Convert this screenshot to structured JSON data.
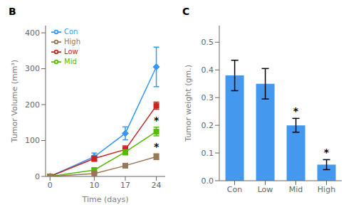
{
  "chart_data": [
    {
      "type": "line",
      "title": "B",
      "x_label": "Time (days)",
      "y_label": "Tumor Volume (mm³)",
      "x": [
        0,
        10,
        17,
        24
      ],
      "xlim": [
        -1,
        26
      ],
      "xticks": [
        0,
        10,
        17,
        24
      ],
      "ylim": [
        0,
        420
      ],
      "yticks": [
        0,
        100,
        200,
        300,
        400
      ],
      "legend": "upper left",
      "grid": false,
      "series": [
        {
          "name": "Con",
          "color": "#3399FF",
          "marker": "diamond",
          "values": [
            0,
            55,
            120,
            305
          ],
          "errors": [
            0,
            10,
            18,
            55
          ]
        },
        {
          "name": "Low",
          "color": "#CC2222",
          "marker": "square",
          "values": [
            0,
            50,
            75,
            197
          ],
          "errors": [
            0,
            8,
            10,
            10
          ]
        },
        {
          "name": "Mid",
          "color": "#55BB00",
          "marker": "square",
          "values": [
            0,
            18,
            68,
            125
          ],
          "errors": [
            0,
            4,
            8,
            12
          ]
        },
        {
          "name": "High",
          "color": "#997755",
          "marker": "square",
          "values": [
            0,
            8,
            30,
            55
          ],
          "errors": [
            0,
            2,
            5,
            8
          ]
        }
      ],
      "annotations": [
        {
          "text": "*",
          "series": "Mid"
        },
        {
          "text": "*",
          "series": "High"
        }
      ]
    },
    {
      "type": "bar",
      "title": "C",
      "y_label": "Tumor weight (gm.)",
      "categories": [
        "Con",
        "Low",
        "Mid",
        "High"
      ],
      "values": [
        0.38,
        0.35,
        0.2,
        0.058
      ],
      "errors": [
        0.055,
        0.055,
        0.025,
        0.018
      ],
      "color": "#4499EE",
      "ylim": [
        0,
        0.56
      ],
      "yticks": [
        {
          "value": 0,
          "label": "0.0"
        },
        0.1,
        0.2,
        0.3,
        0.4,
        0.5
      ],
      "grid": false,
      "annotations": [
        {
          "text": "*",
          "category": "Mid"
        },
        {
          "text": "*",
          "category": "High"
        }
      ]
    }
  ]
}
